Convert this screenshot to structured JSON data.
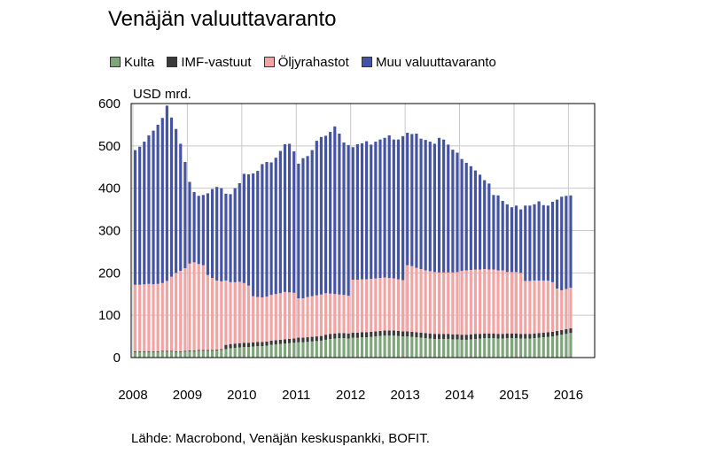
{
  "chart_data": {
    "type": "bar",
    "stacked": true,
    "title": "Venäjän valuuttavaranto",
    "ylabel": "USD mrd.",
    "xlabel": "",
    "ylim": [
      0,
      600
    ],
    "y_ticks": [
      "0",
      "100",
      "200",
      "300",
      "400",
      "500",
      "600"
    ],
    "x_tick_labels": [
      "2008",
      "2009",
      "2010",
      "2011",
      "2012",
      "2013",
      "2014",
      "2015",
      "2016"
    ],
    "x_tick_years": [
      2008,
      2009,
      2010,
      2011,
      2012,
      2013,
      2014,
      2015,
      2016
    ],
    "x_start": "2008-01",
    "legend_position": "top",
    "grid": true,
    "source": "Lähde: Macrobond, Venäjän keskuspankki, BOFIT.",
    "series": [
      {
        "name": "Kulta",
        "color": "#7fa57a",
        "values": [
          13,
          13,
          13,
          13,
          13,
          13,
          14,
          14,
          14,
          13,
          13,
          14,
          15,
          15,
          16,
          16,
          16,
          16,
          17,
          18,
          20,
          22,
          23,
          24,
          25,
          25,
          26,
          27,
          27,
          28,
          30,
          31,
          32,
          33,
          34,
          35,
          36,
          36,
          37,
          38,
          39,
          40,
          42,
          44,
          45,
          46,
          46,
          45,
          47,
          47,
          48,
          48,
          49,
          50,
          51,
          52,
          52,
          52,
          51,
          50,
          50,
          49,
          48,
          47,
          46,
          45,
          44,
          44,
          44,
          44,
          43,
          43,
          42,
          42,
          43,
          44,
          45,
          46,
          46,
          46,
          45,
          45,
          46,
          46,
          46,
          45,
          45,
          45,
          46,
          47,
          48,
          49,
          50,
          52,
          54,
          56,
          58
        ]
      },
      {
        "name": "IMF-vastuut",
        "color": "#3a3a3a",
        "values": [
          2,
          2,
          2,
          2,
          2,
          2,
          2,
          2,
          2,
          2,
          2,
          2,
          2,
          2,
          2,
          2,
          2,
          2,
          2,
          2,
          10,
          10,
          10,
          10,
          10,
          10,
          10,
          10,
          10,
          10,
          10,
          10,
          10,
          10,
          10,
          10,
          11,
          11,
          11,
          11,
          11,
          11,
          12,
          12,
          12,
          12,
          12,
          12,
          12,
          12,
          12,
          12,
          12,
          12,
          12,
          12,
          12,
          12,
          12,
          12,
          12,
          12,
          12,
          12,
          12,
          12,
          12,
          12,
          12,
          12,
          12,
          12,
          12,
          12,
          12,
          12,
          11,
          11,
          11,
          11,
          11,
          11,
          11,
          11,
          11,
          11,
          11,
          11,
          11,
          11,
          11,
          11,
          11,
          11,
          11,
          11,
          11
        ]
      },
      {
        "name": "Öljyrahastot",
        "color": "#f4a3a3",
        "values": [
          157,
          157,
          158,
          159,
          158,
          159,
          160,
          165,
          175,
          185,
          190,
          195,
          205,
          208,
          203,
          200,
          177,
          170,
          163,
          160,
          152,
          146,
          145,
          145,
          141,
          135,
          109,
          106,
          105,
          106,
          108,
          109,
          110,
          112,
          110,
          108,
          93,
          93,
          95,
          96,
          97,
          98,
          98,
          95,
          93,
          91,
          90,
          89,
          125,
          125,
          125,
          125,
          125,
          125,
          125,
          125,
          124,
          123,
          122,
          121,
          156,
          155,
          152,
          150,
          148,
          147,
          146,
          145,
          145,
          145,
          146,
          147,
          151,
          152,
          152,
          152,
          152,
          152,
          151,
          151,
          150,
          150,
          145,
          145,
          145,
          144,
          125,
          125,
          125,
          124,
          123,
          122,
          117,
          100,
          94,
          95,
          96
        ]
      },
      {
        "name": "Muu valuuttavaranto",
        "color": "#4553a3",
        "values": [
          318,
          326,
          337,
          351,
          363,
          376,
          390,
          414,
          376,
          340,
          300,
          251,
          193,
          166,
          161,
          166,
          193,
          210,
          221,
          220,
          205,
          208,
          222,
          233,
          258,
          263,
          290,
          298,
          315,
          318,
          313,
          322,
          336,
          349,
          351,
          334,
          318,
          331,
          333,
          345,
          365,
          372,
          372,
          382,
          396,
          380,
          360,
          356,
          313,
          320,
          321,
          326,
          317,
          323,
          327,
          330,
          337,
          328,
          330,
          340,
          313,
          312,
          317,
          308,
          308,
          306,
          303,
          318,
          314,
          302,
          290,
          282,
          264,
          254,
          245,
          234,
          224,
          210,
          203,
          176,
          177,
          164,
          160,
          153,
          157,
          150,
          178,
          178,
          180,
          187,
          178,
          177,
          190,
          210,
          221,
          220,
          218
        ]
      }
    ]
  }
}
